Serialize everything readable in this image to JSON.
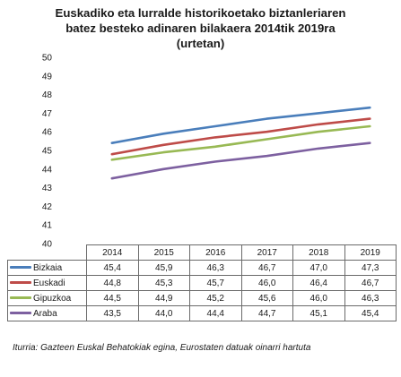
{
  "title_lines": [
    "Euskadiko eta lurralde historikoetako biztanleriaren",
    "batez besteko adinaren bilakaera 2014tik 2019ra",
    "(urtetan)"
  ],
  "source": "Iturria: Gazteen Euskal Behatokiak egina, Eurostaten datuak oinarri hartuta",
  "chart_data": {
    "type": "line",
    "title": "Euskadiko eta lurralde historikoetako biztanleriaren batez besteko adinaren bilakaera 2014tik 2019ra (urtetan)",
    "categories": [
      "2014",
      "2015",
      "2016",
      "2017",
      "2018",
      "2019"
    ],
    "ylim": [
      40,
      50
    ],
    "yticks": [
      "40",
      "41",
      "42",
      "43",
      "44",
      "45",
      "46",
      "47",
      "48",
      "49",
      "50"
    ],
    "grid": false,
    "legend": "data-table",
    "series": [
      {
        "name": "Bizkaia",
        "color": "#4a7ebb",
        "values": [
          45.4,
          45.9,
          46.3,
          46.7,
          47.0,
          47.3
        ],
        "labels": [
          "45,4",
          "45,9",
          "46,3",
          "46,7",
          "47,0",
          "47,3"
        ]
      },
      {
        "name": "Euskadi",
        "color": "#be4b48",
        "values": [
          44.8,
          45.3,
          45.7,
          46.0,
          46.4,
          46.7
        ],
        "labels": [
          "44,8",
          "45,3",
          "45,7",
          "46,0",
          "46,4",
          "46,7"
        ]
      },
      {
        "name": "Gipuzkoa",
        "color": "#98b954",
        "values": [
          44.5,
          44.9,
          45.2,
          45.6,
          46.0,
          46.3
        ],
        "labels": [
          "44,5",
          "44,9",
          "45,2",
          "45,6",
          "46,0",
          "46,3"
        ]
      },
      {
        "name": "Araba",
        "color": "#7d60a0",
        "values": [
          43.5,
          44.0,
          44.4,
          44.7,
          45.1,
          45.4
        ],
        "labels": [
          "43,5",
          "44,0",
          "44,4",
          "44,7",
          "45,1",
          "45,4"
        ]
      }
    ]
  }
}
